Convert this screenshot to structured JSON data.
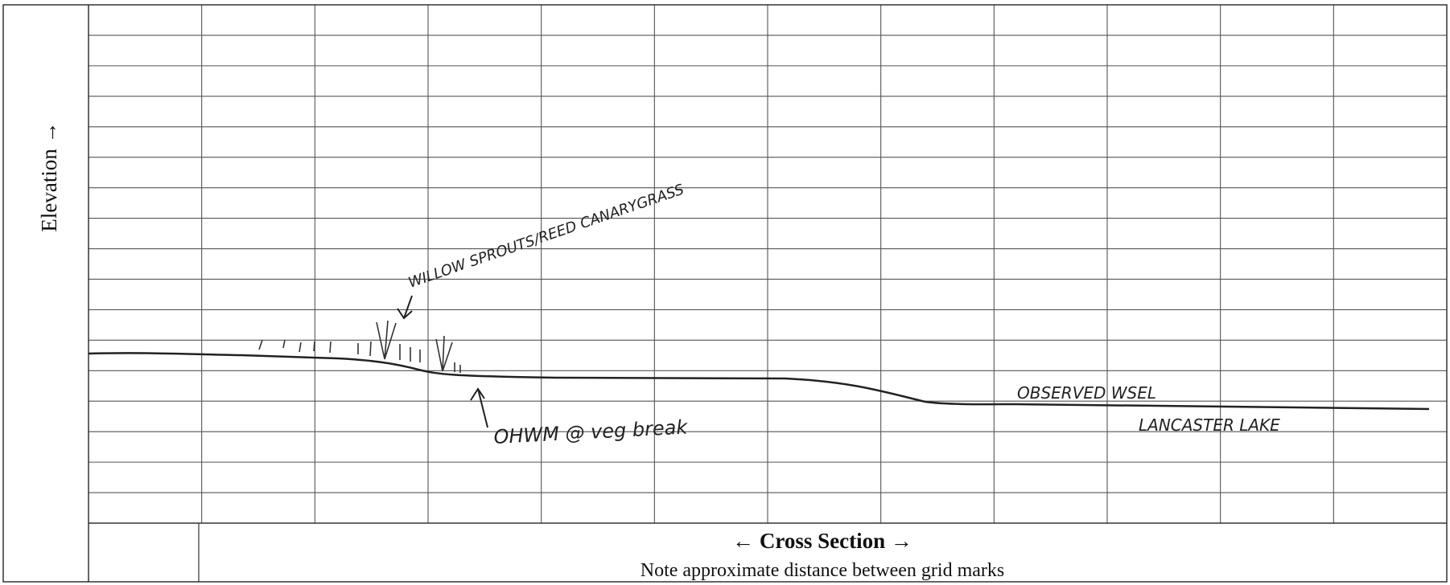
{
  "labels": {
    "y_axis": "Elevation →",
    "x_axis": "← Cross Section →",
    "note": "Note approximate distance between grid marks"
  },
  "annotations": [
    {
      "text": "WILLOW SPROUTS/REED CANARYGRASS"
    },
    {
      "text": "OHWM @ veg break"
    },
    {
      "text": "OBSERVED WSEL"
    },
    {
      "text": "LANCASTER LAKE"
    }
  ]
}
